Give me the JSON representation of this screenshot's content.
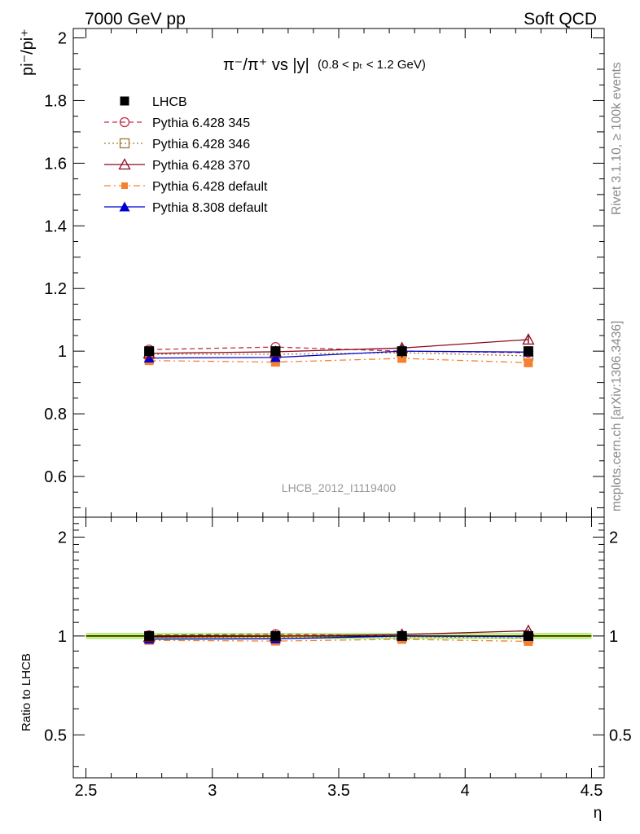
{
  "header": {
    "left": "7000 GeV pp",
    "right": "Soft QCD"
  },
  "side": {
    "rivet": "Rivet 3.1.10, ≥ 100k events",
    "mcplots": "mcplots.cern.ch [arXiv:1306.3436]"
  },
  "plot": {
    "title_main": "π⁻/π⁺ vs |y|",
    "title_cut": "(0.8 < pₜ < 1.2 GeV)",
    "ylabel": "pi⁻/pi⁺",
    "watermark": "LHCB_2012_I1119400",
    "ratio_ylabel": "Ratio to LHCB",
    "xlabel": "η"
  },
  "colors": {
    "lhcb": "#000000",
    "py345": "#c0304a",
    "py346": "#a07830",
    "py370": "#8b0a1e",
    "pydef": "#f58030",
    "py8": "#0000d0",
    "band_inner": "#ffff66",
    "band_outer": "#99ee66"
  },
  "chart_data": {
    "type": "scatter",
    "x": [
      2.75,
      3.25,
      3.75,
      4.25
    ],
    "xlim": [
      2.45,
      4.55
    ],
    "ylim": [
      0.47,
      2.03
    ],
    "xlabel": "η",
    "ylabel": "pi⁻/pi⁺",
    "xticks": [
      "2.5",
      "3",
      "3.5",
      "4",
      "4.5"
    ],
    "yticks": [
      "0.6",
      "0.8",
      "1",
      "1.2",
      "1.4",
      "1.6",
      "1.8",
      "2"
    ],
    "ratio_ylim": [
      0.37,
      2.3
    ],
    "ratio_log": true,
    "ratio_yticks": [
      "0.5",
      "1",
      "2"
    ],
    "legend_position": "top-left",
    "series": [
      {
        "key": "lhcb",
        "name": "LHCB",
        "values": [
          1.0,
          1.0,
          1.0,
          1.0
        ],
        "errors": [
          0.015,
          0.015,
          0.02,
          0.015
        ],
        "marker": "filled-square",
        "line": "none"
      },
      {
        "key": "py345",
        "name": "Pythia 6.428 345",
        "values": [
          1.005,
          1.013,
          1.0,
          0.995
        ],
        "marker": "open-circle",
        "line": "dashed"
      },
      {
        "key": "py346",
        "name": "Pythia 6.428 346",
        "values": [
          0.99,
          0.99,
          0.995,
          0.985
        ],
        "marker": "open-square",
        "line": "dotted"
      },
      {
        "key": "py370",
        "name": "Pythia 6.428 370",
        "values": [
          0.993,
          0.998,
          1.01,
          1.037
        ],
        "errors": [
          0.01,
          0.01,
          0.01,
          0.012
        ],
        "marker": "open-triangle",
        "line": "solid"
      },
      {
        "key": "pydef",
        "name": "Pythia 6.428 default",
        "values": [
          0.97,
          0.965,
          0.977,
          0.963
        ],
        "errors": [
          0.012,
          0.012,
          0.012,
          0.012
        ],
        "marker": "filled-square",
        "line": "dashdot"
      },
      {
        "key": "py8",
        "name": "Pythia 8.308 default",
        "values": [
          0.978,
          0.98,
          1.0,
          0.997
        ],
        "marker": "filled-triangle",
        "line": "solid"
      }
    ]
  }
}
